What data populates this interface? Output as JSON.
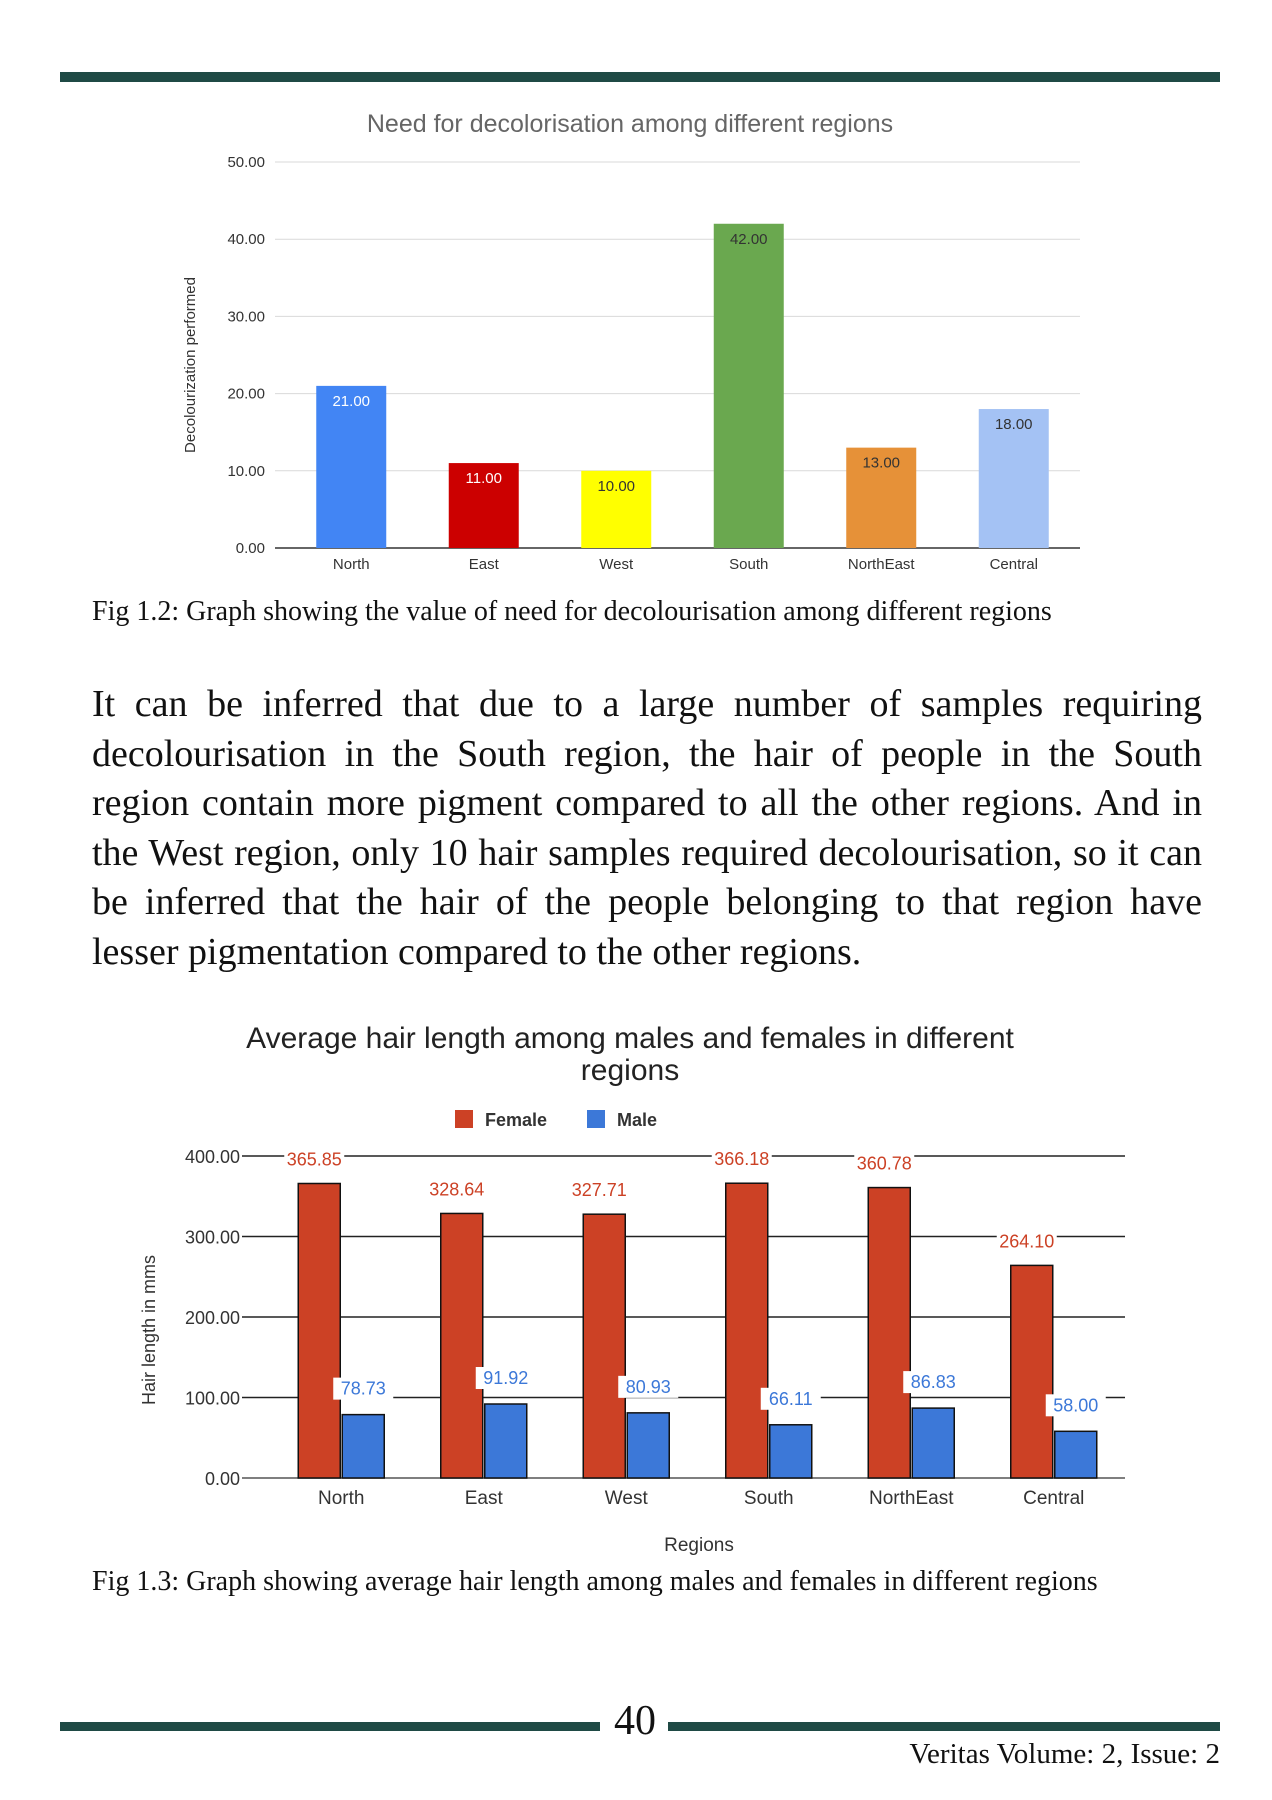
{
  "figures": [
    {
      "caption": "Fig 1.2: Graph showing the value of need for decolourisation among different regions",
      "chart_data": {
        "type": "bar",
        "title": "Need for decolorisation among different regions",
        "xlabel": "",
        "ylabel": "Decolourization performed",
        "categories": [
          "North",
          "East",
          "West",
          "South",
          "NorthEast",
          "Central"
        ],
        "values": [
          21.0,
          11.0,
          10.0,
          42.0,
          13.0,
          18.0
        ],
        "data_labels": [
          "21.00",
          "11.00",
          "10.00",
          "42.00",
          "13.00",
          "18.00"
        ],
        "bar_colors": [
          "#4285f4",
          "#cc0000",
          "#ffff00",
          "#6aa84f",
          "#e69138",
          "#a4c2f4"
        ],
        "label_colors": [
          "#ffffff",
          "#ffffff",
          "#333333",
          "#333333",
          "#333333",
          "#333333"
        ],
        "ylim": [
          0,
          50
        ],
        "yticks": [
          "0.00",
          "10.00",
          "20.00",
          "30.00",
          "40.00",
          "50.00"
        ],
        "grid": true,
        "legend": "none"
      }
    },
    {
      "caption": "Fig 1.3: Graph showing average hair length among males and females in different regions",
      "chart_data": {
        "type": "bar",
        "title": "Average hair length among males and females in different regions",
        "xlabel": "Regions",
        "ylabel": "Hair length in mms",
        "categories": [
          "North",
          "East",
          "West",
          "South",
          "NorthEast",
          "Central"
        ],
        "series": [
          {
            "name": "Female",
            "color": "#cc4125",
            "values": [
              365.85,
              328.64,
              327.71,
              366.18,
              360.78,
              264.1
            ],
            "labels": [
              "365.85",
              "328.64",
              "327.71",
              "366.18",
              "360.78",
              "264.10"
            ]
          },
          {
            "name": "Male",
            "color": "#3c78d8",
            "values": [
              78.73,
              91.92,
              80.93,
              66.11,
              86.83,
              58.0
            ],
            "labels": [
              "78.73",
              "91.92",
              "80.93",
              "66.11",
              "86.83",
              "58.00"
            ]
          }
        ],
        "ylim": [
          0,
          400
        ],
        "yticks": [
          "0.00",
          "100.00",
          "200.00",
          "300.00",
          "400.00"
        ],
        "grid": true,
        "legend": "top"
      }
    }
  ],
  "body_text": "It can be inferred that due to a large number of samples requiring decolourisation in the South region, the hair of people in the South region contain more pigment compared to all the other regions. And in the West region, only 10 hair samples required decolourisation, so it can be inferred that the hair of the people belonging to that region have lesser pigmentation compared to the other regions.",
  "page_number": "40",
  "footer": "Veritas Volume: 2, Issue: 2"
}
